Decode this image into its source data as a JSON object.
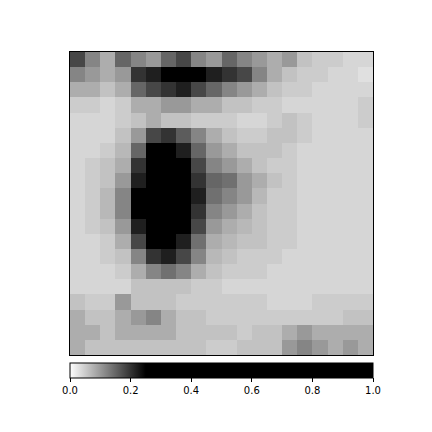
{
  "chart_data": {
    "type": "heatmap",
    "tick_labels": false,
    "cells": [
      [
        0.18,
        0.12,
        0.08,
        0.15,
        0.12,
        0.1,
        0.15,
        0.18,
        0.12,
        0.1,
        0.15,
        0.12,
        0.1,
        0.08,
        0.1,
        0.06,
        0.05,
        0.05,
        0.04,
        0.04
      ],
      [
        0.12,
        0.1,
        0.08,
        0.1,
        0.2,
        0.22,
        0.28,
        0.3,
        0.25,
        0.22,
        0.2,
        0.18,
        0.12,
        0.08,
        0.06,
        0.05,
        0.05,
        0.04,
        0.04,
        0.03
      ],
      [
        0.08,
        0.08,
        0.06,
        0.08,
        0.15,
        0.18,
        0.2,
        0.22,
        0.18,
        0.15,
        0.12,
        0.1,
        0.08,
        0.06,
        0.05,
        0.05,
        0.04,
        0.04,
        0.04,
        0.04
      ],
      [
        0.05,
        0.05,
        0.04,
        0.05,
        0.08,
        0.08,
        0.1,
        0.1,
        0.08,
        0.08,
        0.06,
        0.06,
        0.05,
        0.05,
        0.04,
        0.04,
        0.04,
        0.04,
        0.04,
        0.05
      ],
      [
        0.04,
        0.04,
        0.04,
        0.05,
        0.06,
        0.08,
        0.06,
        0.06,
        0.05,
        0.05,
        0.05,
        0.04,
        0.04,
        0.05,
        0.06,
        0.05,
        0.04,
        0.04,
        0.04,
        0.05
      ],
      [
        0.04,
        0.04,
        0.04,
        0.06,
        0.1,
        0.18,
        0.2,
        0.16,
        0.12,
        0.08,
        0.06,
        0.05,
        0.05,
        0.06,
        0.06,
        0.05,
        0.04,
        0.04,
        0.04,
        0.04
      ],
      [
        0.04,
        0.04,
        0.05,
        0.07,
        0.15,
        0.25,
        0.28,
        0.22,
        0.15,
        0.1,
        0.08,
        0.06,
        0.06,
        0.06,
        0.05,
        0.04,
        0.04,
        0.04,
        0.04,
        0.04
      ],
      [
        0.04,
        0.05,
        0.06,
        0.08,
        0.2,
        0.3,
        0.35,
        0.28,
        0.18,
        0.12,
        0.1,
        0.08,
        0.06,
        0.05,
        0.05,
        0.04,
        0.04,
        0.04,
        0.04,
        0.04
      ],
      [
        0.04,
        0.05,
        0.06,
        0.1,
        0.22,
        0.35,
        0.4,
        0.3,
        0.2,
        0.15,
        0.14,
        0.1,
        0.08,
        0.06,
        0.05,
        0.04,
        0.04,
        0.04,
        0.04,
        0.04
      ],
      [
        0.04,
        0.05,
        0.07,
        0.12,
        0.25,
        0.4,
        0.45,
        0.35,
        0.22,
        0.14,
        0.12,
        0.1,
        0.07,
        0.05,
        0.05,
        0.04,
        0.04,
        0.04,
        0.04,
        0.04
      ],
      [
        0.04,
        0.05,
        0.07,
        0.12,
        0.25,
        0.38,
        0.42,
        0.32,
        0.2,
        0.12,
        0.1,
        0.08,
        0.06,
        0.05,
        0.05,
        0.04,
        0.04,
        0.04,
        0.04,
        0.04
      ],
      [
        0.04,
        0.05,
        0.06,
        0.1,
        0.22,
        0.32,
        0.35,
        0.28,
        0.18,
        0.1,
        0.08,
        0.07,
        0.06,
        0.05,
        0.05,
        0.04,
        0.04,
        0.04,
        0.04,
        0.04
      ],
      [
        0.04,
        0.04,
        0.05,
        0.08,
        0.18,
        0.25,
        0.28,
        0.22,
        0.14,
        0.08,
        0.07,
        0.06,
        0.06,
        0.05,
        0.05,
        0.04,
        0.04,
        0.04,
        0.04,
        0.04
      ],
      [
        0.04,
        0.04,
        0.05,
        0.06,
        0.12,
        0.2,
        0.22,
        0.18,
        0.12,
        0.07,
        0.06,
        0.05,
        0.05,
        0.05,
        0.04,
        0.04,
        0.04,
        0.04,
        0.04,
        0.04
      ],
      [
        0.04,
        0.04,
        0.04,
        0.05,
        0.08,
        0.12,
        0.14,
        0.12,
        0.08,
        0.06,
        0.05,
        0.05,
        0.05,
        0.04,
        0.04,
        0.04,
        0.04,
        0.04,
        0.04,
        0.04
      ],
      [
        0.04,
        0.04,
        0.04,
        0.04,
        0.06,
        0.06,
        0.06,
        0.06,
        0.05,
        0.05,
        0.04,
        0.04,
        0.04,
        0.04,
        0.04,
        0.04,
        0.04,
        0.04,
        0.04,
        0.04
      ],
      [
        0.06,
        0.05,
        0.05,
        0.1,
        0.06,
        0.06,
        0.06,
        0.05,
        0.05,
        0.05,
        0.05,
        0.05,
        0.05,
        0.04,
        0.04,
        0.04,
        0.05,
        0.05,
        0.05,
        0.05
      ],
      [
        0.08,
        0.06,
        0.06,
        0.08,
        0.1,
        0.12,
        0.08,
        0.06,
        0.06,
        0.05,
        0.05,
        0.05,
        0.05,
        0.05,
        0.05,
        0.05,
        0.05,
        0.05,
        0.06,
        0.06
      ],
      [
        0.08,
        0.08,
        0.06,
        0.08,
        0.08,
        0.08,
        0.08,
        0.06,
        0.06,
        0.06,
        0.06,
        0.05,
        0.06,
        0.06,
        0.08,
        0.1,
        0.08,
        0.08,
        0.08,
        0.08
      ],
      [
        0.08,
        0.06,
        0.06,
        0.06,
        0.06,
        0.06,
        0.06,
        0.06,
        0.06,
        0.05,
        0.05,
        0.06,
        0.06,
        0.06,
        0.1,
        0.12,
        0.1,
        0.08,
        0.1,
        0.08
      ]
    ],
    "colorbar": {
      "range": [
        0,
        1
      ],
      "ticks": [
        {
          "value": 0,
          "label": "0.0"
        },
        {
          "value": 0.2,
          "label": "0.2"
        },
        {
          "value": 0.4,
          "label": "0.4"
        },
        {
          "value": 0.6,
          "label": "0.6"
        },
        {
          "value": 0.8,
          "label": "0.8"
        },
        {
          "value": 1,
          "label": "1.0"
        }
      ]
    }
  }
}
